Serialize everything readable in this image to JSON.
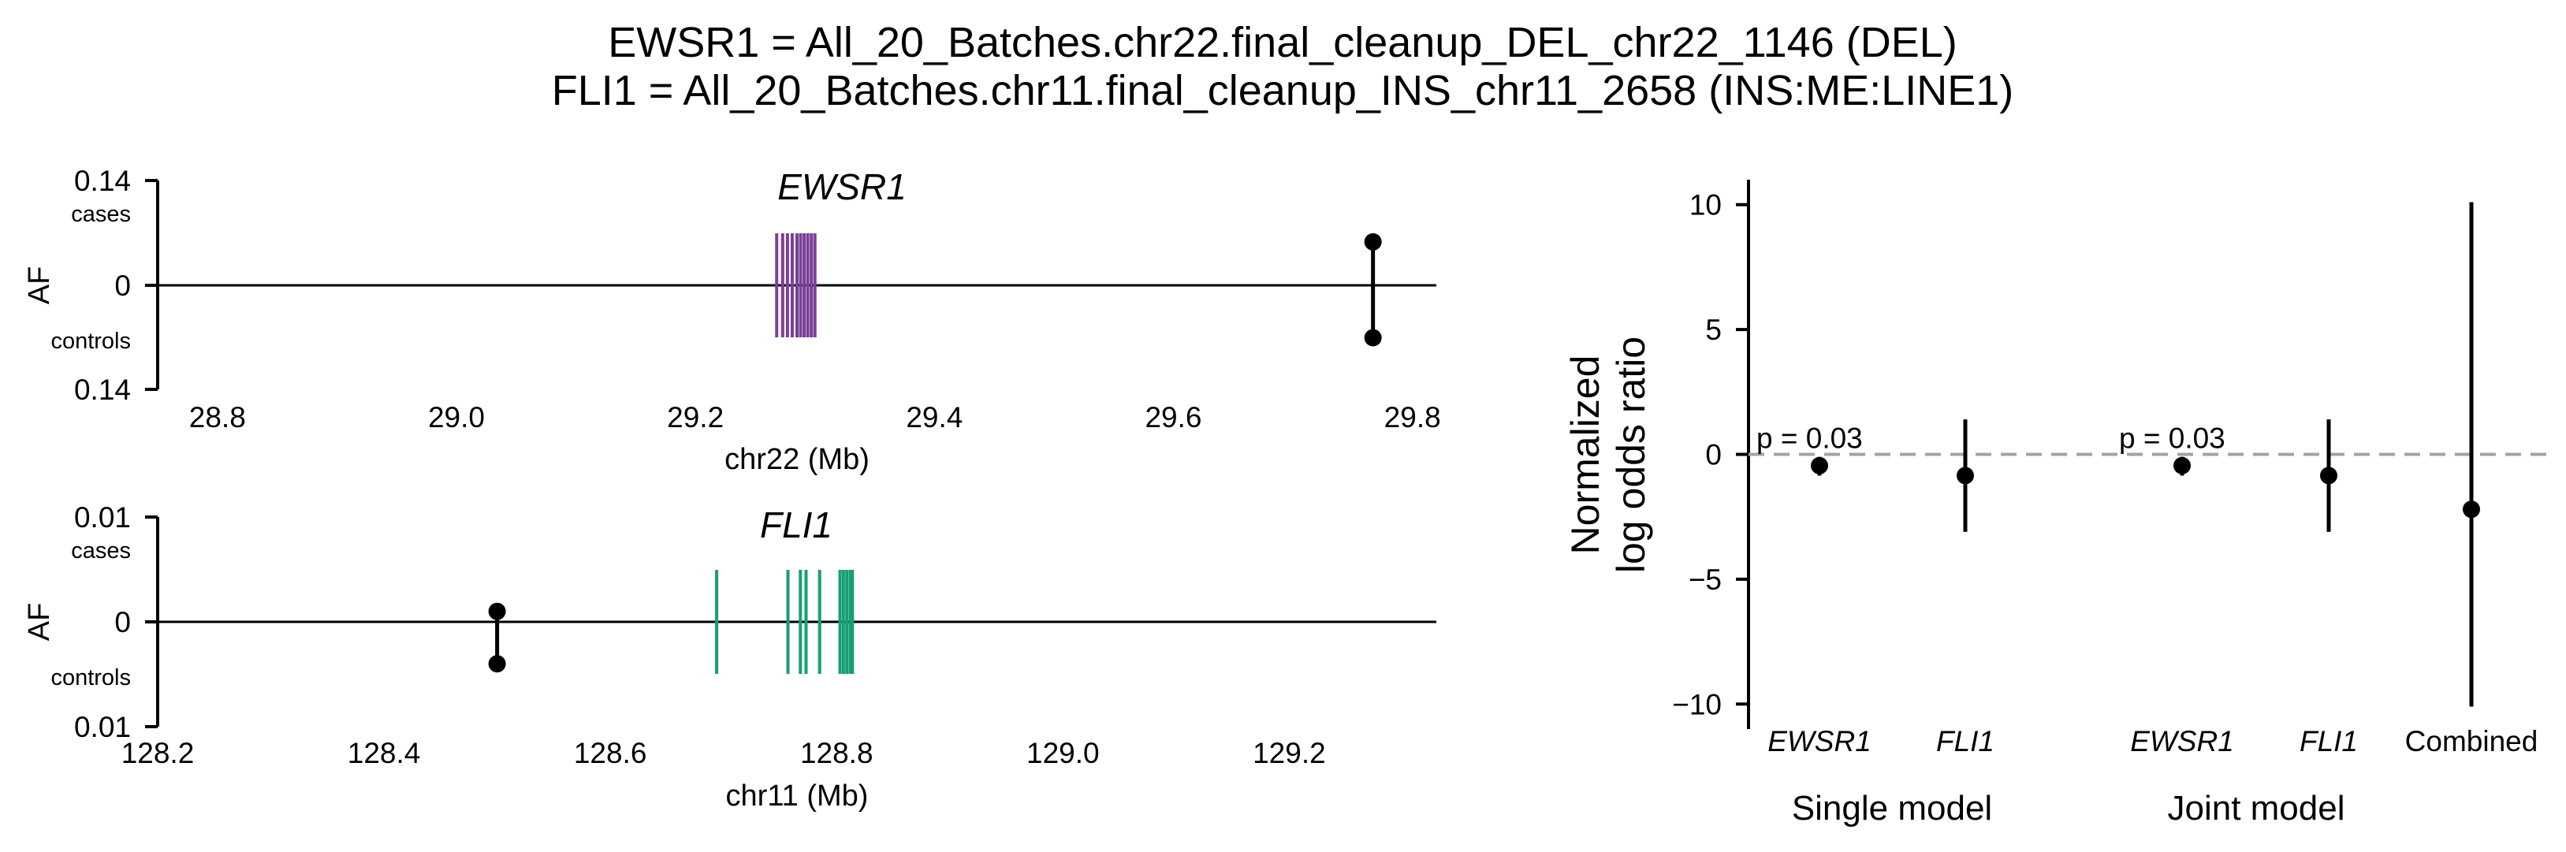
{
  "title_lines": [
    "EWSR1 = All_20_Batches.chr22.final_cleanup_DEL_chr22_1146 (DEL)",
    "FLI1 = All_20_Batches.chr11.final_cleanup_INS_chr11_2658 (INS:ME:LINE1)"
  ],
  "chart_data": [
    {
      "type": "locus",
      "gene": "EWSR1",
      "xlabel": "chr22 (Mb)",
      "ylabel": "AF",
      "xlim": [
        28.75,
        29.82
      ],
      "xticks": [
        28.8,
        29.0,
        29.2,
        29.4,
        29.6,
        29.8
      ],
      "y_tick_labels": [
        "0.14",
        "0",
        "0.14"
      ],
      "cases_label": "cases",
      "controls_label": "controls",
      "af_max": 0.14,
      "gene_color": "#7B3F99",
      "exons_mb": [
        29.268,
        29.273,
        29.277,
        29.281,
        29.285,
        29.288,
        29.291,
        29.294,
        29.297,
        29.3
      ],
      "variant": {
        "position_mb": 29.767,
        "af_cases": 0.058,
        "af_controls": 0.07
      }
    },
    {
      "type": "locus",
      "gene": "FLI1",
      "xlabel": "chr11 (Mb)",
      "ylabel": "AF",
      "xlim": [
        128.2,
        129.33
      ],
      "xticks": [
        128.2,
        128.4,
        128.6,
        128.8,
        129.0,
        129.2
      ],
      "y_tick_labels": [
        "0.01",
        "0",
        "0.01"
      ],
      "cases_label": "cases",
      "controls_label": "controls",
      "af_max": 0.01,
      "gene_color": "#169F74",
      "exons_mb": [
        128.694,
        128.757,
        128.768,
        128.773,
        128.785,
        128.803,
        128.806,
        128.809,
        128.812,
        128.814
      ],
      "variant": {
        "position_mb": 128.5,
        "af_cases": 0.001,
        "af_controls": 0.004
      }
    },
    {
      "type": "scatter",
      "ylabel_lines": [
        "Normalized",
        "log odds ratio"
      ],
      "ylim": [
        -11,
        11
      ],
      "yticks": [
        10,
        5,
        0,
        -5,
        -10
      ],
      "ytick_labels": [
        "10",
        "5",
        "0",
        "−5",
        "−10"
      ],
      "reference_line": 0,
      "points": [
        {
          "label": "EWSR1",
          "italic": true,
          "value": -0.45,
          "ci": [
            -0.85,
            -0.1
          ],
          "pval_label": "p = 0.03"
        },
        {
          "label": "FLI1",
          "italic": true,
          "value": -0.85,
          "ci": [
            -3.1,
            1.4
          ],
          "pval_label": ""
        },
        {
          "label": "EWSR1",
          "italic": true,
          "value": -0.45,
          "ci": [
            -0.85,
            -0.1
          ],
          "pval_label": "p = 0.03"
        },
        {
          "label": "FLI1",
          "italic": true,
          "value": -0.85,
          "ci": [
            -3.1,
            1.4
          ],
          "pval_label": ""
        },
        {
          "label": "Combined",
          "italic": false,
          "value": -2.2,
          "ci": [
            -10.1,
            10.1
          ],
          "pval_label": ""
        }
      ],
      "groups": [
        "Single model",
        "Joint model"
      ]
    }
  ]
}
